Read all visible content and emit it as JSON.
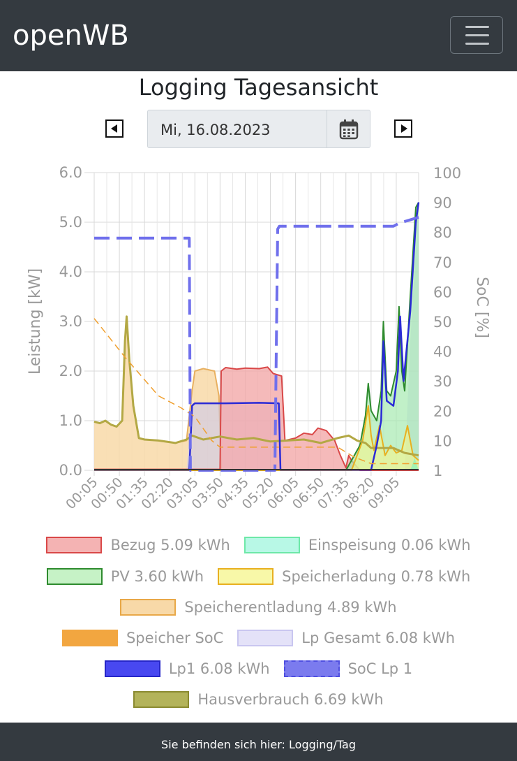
{
  "navbar": {
    "brand": "openWB",
    "menu_icon": "hamburger-menu-icon"
  },
  "page": {
    "title": "Logging Tagesansicht",
    "date": "Mi, 16.08.2023",
    "prev_icon": "caret-left-square-icon",
    "next_icon": "caret-right-square-icon",
    "calendar_icon": "calendar-icon"
  },
  "chart_data": {
    "type": "area",
    "ylabel": "Leistung [kW]",
    "y2label": "SoC [%]",
    "ylim": [
      0,
      6
    ],
    "y2ticks": [
      1,
      10,
      20,
      30,
      40,
      50,
      60,
      70,
      80,
      90,
      100
    ],
    "yticks": [
      "0.0",
      "1.0",
      "2.0",
      "3.0",
      "4.0",
      "5.0",
      "6.0"
    ],
    "xlim": [
      "00:05",
      "09:45"
    ],
    "xticks": [
      "00:05",
      "00:50",
      "01:35",
      "02:20",
      "03:05",
      "03:50",
      "04:35",
      "05:20",
      "06:05",
      "06:50",
      "07:35",
      "08:20",
      "09:05"
    ],
    "grid": true,
    "series": [
      {
        "name": "Bezug 5.09 kWh",
        "color": "#e06666",
        "points": [
          [
            "00:05",
            0.02
          ],
          [
            "03:00",
            0.02
          ],
          [
            "03:50",
            0.02
          ],
          [
            "03:52",
            2.0
          ],
          [
            "04:00",
            2.07
          ],
          [
            "04:20",
            2.04
          ],
          [
            "04:35",
            2.06
          ],
          [
            "05:00",
            2.05
          ],
          [
            "05:15",
            2.08
          ],
          [
            "05:25",
            1.95
          ],
          [
            "05:40",
            1.9
          ],
          [
            "05:46",
            0.6
          ],
          [
            "06:05",
            0.65
          ],
          [
            "06:20",
            0.75
          ],
          [
            "06:35",
            0.72
          ],
          [
            "06:45",
            0.85
          ],
          [
            "07:00",
            0.8
          ],
          [
            "07:15",
            0.6
          ],
          [
            "07:25",
            0.3
          ],
          [
            "07:35",
            0.05
          ],
          [
            "07:40",
            0.3
          ],
          [
            "07:45",
            0.2
          ],
          [
            "08:00",
            0.0
          ],
          [
            "09:45",
            0.0
          ]
        ]
      },
      {
        "name": "Einspeisung 0.06 kWh",
        "color": "#7af5c0",
        "points": [
          [
            "00:05",
            0
          ],
          [
            "09:30",
            0
          ],
          [
            "09:38",
            0.25
          ],
          [
            "09:42",
            0.1
          ],
          [
            "09:45",
            0
          ]
        ]
      },
      {
        "name": "PV 3.60 kWh",
        "color": "#2e8b2e",
        "points": [
          [
            "00:05",
            0
          ],
          [
            "07:35",
            0
          ],
          [
            "07:50",
            0.3
          ],
          [
            "08:00",
            0.5
          ],
          [
            "08:10",
            1.1
          ],
          [
            "08:15",
            1.75
          ],
          [
            "08:20",
            1.2
          ],
          [
            "08:30",
            1.0
          ],
          [
            "08:38",
            1.6
          ],
          [
            "08:42",
            3.0
          ],
          [
            "08:48",
            1.6
          ],
          [
            "08:55",
            1.5
          ],
          [
            "09:05",
            2.0
          ],
          [
            "09:10",
            3.3
          ],
          [
            "09:15",
            2.0
          ],
          [
            "09:20",
            1.6
          ],
          [
            "09:30",
            3.5
          ],
          [
            "09:40",
            5.3
          ],
          [
            "09:45",
            5.4
          ]
        ]
      },
      {
        "name": "Speicherladung 0.78 kWh",
        "color": "#f2c12e",
        "points": [
          [
            "00:05",
            0
          ],
          [
            "07:45",
            0
          ],
          [
            "07:55",
            0.3
          ],
          [
            "08:05",
            0.6
          ],
          [
            "08:15",
            1.3
          ],
          [
            "08:20",
            0.7
          ],
          [
            "08:25",
            0.4
          ],
          [
            "08:35",
            0.9
          ],
          [
            "08:45",
            0.3
          ],
          [
            "08:55",
            0.5
          ],
          [
            "09:05",
            0.35
          ],
          [
            "09:15",
            0.4
          ],
          [
            "09:25",
            0.9
          ],
          [
            "09:35",
            0.3
          ],
          [
            "09:45",
            0.2
          ]
        ]
      },
      {
        "name": "Speicherentladung 4.89 kWh",
        "color": "#f0b050",
        "points": [
          [
            "00:05",
            0.98
          ],
          [
            "00:15",
            0.95
          ],
          [
            "00:25",
            1.0
          ],
          [
            "00:35",
            0.92
          ],
          [
            "00:45",
            0.88
          ],
          [
            "00:55",
            1.0
          ],
          [
            "01:00",
            2.6
          ],
          [
            "01:03",
            3.1
          ],
          [
            "01:08",
            2.2
          ],
          [
            "01:15",
            1.3
          ],
          [
            "01:25",
            0.65
          ],
          [
            "01:35",
            0.62
          ],
          [
            "02:00",
            0.6
          ],
          [
            "02:30",
            0.55
          ],
          [
            "02:50",
            0.6
          ],
          [
            "03:00",
            1.6
          ],
          [
            "03:05",
            2.0
          ],
          [
            "03:20",
            2.05
          ],
          [
            "03:40",
            2.0
          ],
          [
            "03:48",
            1.5
          ],
          [
            "03:52",
            0.0
          ],
          [
            "09:45",
            0.0
          ]
        ]
      },
      {
        "name": "Speicher SoC",
        "axis": "soc",
        "color": "#f0a030",
        "points": [
          [
            "00:05",
            51
          ],
          [
            "01:00",
            38
          ],
          [
            "02:00",
            25
          ],
          [
            "02:40",
            21
          ],
          [
            "03:05",
            18
          ],
          [
            "03:35",
            10
          ],
          [
            "03:50",
            8
          ],
          [
            "04:20",
            8
          ],
          [
            "05:00",
            8
          ],
          [
            "05:50",
            8
          ],
          [
            "06:30",
            8
          ],
          [
            "07:20",
            8
          ],
          [
            "07:50",
            5
          ],
          [
            "08:20",
            3
          ],
          [
            "09:45",
            3
          ]
        ]
      },
      {
        "name": "Lp Gesamt 6.08 kWh",
        "color": "#c9c6f0",
        "points": [
          [
            "00:05",
            0
          ],
          [
            "02:50",
            0
          ],
          [
            "03:00",
            1.35
          ],
          [
            "05:38",
            1.35
          ],
          [
            "05:40",
            0.0
          ],
          [
            "09:20",
            0.0
          ],
          [
            "09:30",
            2.6
          ],
          [
            "09:45",
            5.3
          ]
        ]
      },
      {
        "name": "Lp1 6.08 kWh",
        "color": "#3030e0",
        "points": [
          [
            "00:05",
            0.01
          ],
          [
            "02:55",
            0.01
          ],
          [
            "03:00",
            1.3
          ],
          [
            "03:05",
            1.35
          ],
          [
            "04:00",
            1.35
          ],
          [
            "05:00",
            1.36
          ],
          [
            "05:35",
            1.35
          ],
          [
            "05:38",
            0.01
          ],
          [
            "08:20",
            0.01
          ],
          [
            "08:30",
            0.5
          ],
          [
            "08:38",
            1.0
          ],
          [
            "08:42",
            2.6
          ],
          [
            "08:48",
            1.4
          ],
          [
            "09:00",
            1.3
          ],
          [
            "09:08",
            2.0
          ],
          [
            "09:12",
            3.1
          ],
          [
            "09:18",
            1.8
          ],
          [
            "09:30",
            3.2
          ],
          [
            "09:40",
            5.0
          ],
          [
            "09:45",
            5.4
          ]
        ]
      },
      {
        "name": "SoC Lp 1",
        "axis": "soc",
        "color": "#7777ee",
        "points": [
          [
            "00:05",
            78
          ],
          [
            "02:55",
            78
          ],
          [
            "02:57",
            1
          ],
          [
            "05:28",
            1
          ],
          [
            "05:33",
            81
          ],
          [
            "05:36",
            82
          ],
          [
            "09:00",
            82
          ],
          [
            "09:10",
            83
          ],
          [
            "09:45",
            85
          ]
        ]
      },
      {
        "name": "Hausverbrauch 6.69 kWh",
        "color": "#a0a040",
        "points": [
          [
            "00:05",
            0.98
          ],
          [
            "00:15",
            0.95
          ],
          [
            "00:25",
            1.0
          ],
          [
            "00:35",
            0.92
          ],
          [
            "00:45",
            0.88
          ],
          [
            "00:55",
            1.0
          ],
          [
            "01:00",
            2.6
          ],
          [
            "01:03",
            3.1
          ],
          [
            "01:08",
            2.2
          ],
          [
            "01:15",
            1.3
          ],
          [
            "01:25",
            0.65
          ],
          [
            "01:35",
            0.62
          ],
          [
            "02:00",
            0.6
          ],
          [
            "02:30",
            0.55
          ],
          [
            "02:50",
            0.62
          ],
          [
            "03:00",
            0.7
          ],
          [
            "03:20",
            0.62
          ],
          [
            "03:50",
            0.68
          ],
          [
            "04:20",
            0.62
          ],
          [
            "04:50",
            0.65
          ],
          [
            "05:20",
            0.58
          ],
          [
            "05:50",
            0.6
          ],
          [
            "06:20",
            0.62
          ],
          [
            "06:50",
            0.55
          ],
          [
            "07:20",
            0.65
          ],
          [
            "07:40",
            0.7
          ],
          [
            "07:55",
            0.6
          ],
          [
            "08:10",
            0.55
          ],
          [
            "08:20",
            0.45
          ],
          [
            "08:40",
            0.45
          ],
          [
            "09:00",
            0.45
          ],
          [
            "09:20",
            0.35
          ],
          [
            "09:45",
            0.3
          ]
        ]
      }
    ]
  },
  "legend": [
    {
      "label": "Bezug 5.09 kWh",
      "fill": "#f4b3b3",
      "border": "#d94848",
      "style": "solid"
    },
    {
      "label": "Einspeisung 0.06 kWh",
      "fill": "#b8f8e6",
      "border": "#6ee8a8",
      "style": "solid"
    },
    {
      "label": "PV 3.60 kWh",
      "fill": "#c6f2c6",
      "border": "#2e8b2e",
      "style": "solid"
    },
    {
      "label": "Speicherladung 0.78 kWh",
      "fill": "#f8f8a8",
      "border": "#e8b020",
      "style": "solid"
    },
    {
      "label": "Speicherentladung 4.89 kWh",
      "fill": "#f8d9a8",
      "border": "#e8a848",
      "style": "solid"
    },
    {
      "label": "Speicher SoC",
      "fill": "#f2a640",
      "border": "#f2a640",
      "style": "dashed"
    },
    {
      "label": "Lp Gesamt 6.08 kWh",
      "fill": "#e4e2f8",
      "border": "#c9c6f0",
      "style": "solid"
    },
    {
      "label": "Lp1 6.08 kWh",
      "fill": "#4848f0",
      "border": "#2626c8",
      "style": "solid"
    },
    {
      "label": "SoC Lp 1",
      "fill": "#7b7bee",
      "border": "#4f4fe0",
      "style": "dashed"
    },
    {
      "label": "Hausverbrauch 6.69 kWh",
      "fill": "#b3b35a",
      "border": "#8a8a30",
      "style": "solid"
    }
  ],
  "footer": {
    "text": "Sie befinden sich hier: Logging/Tag"
  }
}
